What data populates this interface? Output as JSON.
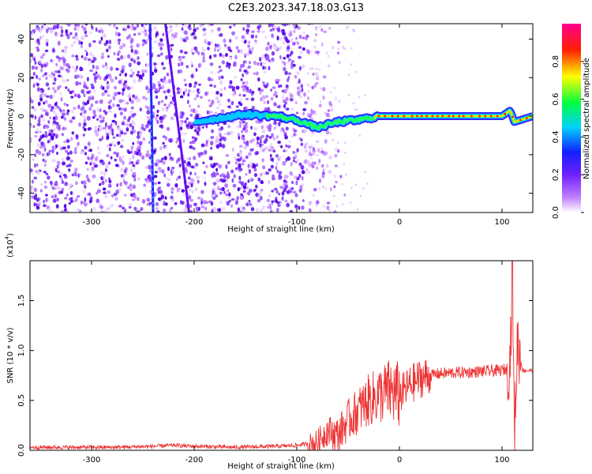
{
  "title": "C2E3.2023.347.18.03.G13",
  "chart_data": [
    {
      "type": "heatmap",
      "xlabel": "Height of straight line (km)",
      "ylabel": "Frequency (Hz)",
      "xlim": [
        -360,
        130
      ],
      "ylim": [
        -50,
        48
      ],
      "xticks": [
        -300,
        -200,
        -100,
        0,
        100
      ],
      "yticks": [
        -40,
        -20,
        0,
        20,
        40
      ],
      "colorbar": {
        "label": "Normalized spectral amplitude",
        "range": [
          0.0,
          1.0
        ],
        "ticks": [
          0.0,
          0.2,
          0.4,
          0.6,
          0.8
        ],
        "colormap": [
          "#ffffff",
          "#a040ff",
          "#2000ff",
          "#00d0ff",
          "#00ff40",
          "#ffff00",
          "#ff2000",
          "#ff0090"
        ]
      },
      "features": {
        "noise_region_x": [
          -360,
          -110
        ],
        "tilted_streak": {
          "x": [
            -243,
            -240
          ],
          "y": [
            48,
            -50
          ]
        },
        "tilted_streak_2": {
          "x": [
            -228,
            -205
          ],
          "y": [
            48,
            -50
          ]
        },
        "signal_line": {
          "x": [
            -200,
            -150,
            -120,
            -100,
            -80,
            -60,
            -40,
            -30,
            -20,
            0,
            50,
            100,
            108,
            112,
            130
          ],
          "y": [
            -3,
            1,
            0,
            -2,
            -6,
            -3,
            -2,
            -1,
            0,
            0,
            0,
            0,
            3,
            -3,
            0
          ]
        }
      },
      "grid": false
    },
    {
      "type": "line",
      "xlabel": "Height of straight line (km)",
      "ylabel": "SNR (10 * v/v)",
      "yscale_label": "(x10",
      "yscale_exp": "4",
      "yscale_close": ")",
      "xlim": [
        -360,
        130
      ],
      "ylim": [
        0,
        1.9
      ],
      "xticks": [
        -300,
        -200,
        -100,
        0,
        100
      ],
      "yticks": [
        0.0,
        0.5,
        1.0,
        1.5
      ],
      "color": "#ee3333",
      "series": [
        {
          "x": [
            -360,
            -320,
            -280,
            -240,
            -220,
            -200,
            -160,
            -120,
            -100,
            -80,
            -70,
            -60,
            -50,
            -40,
            -30,
            -20,
            -10,
            0,
            10,
            20,
            30,
            40,
            60,
            80,
            100,
            105,
            108,
            110,
            112,
            115,
            120,
            130
          ],
          "y": [
            0.03,
            0.03,
            0.03,
            0.04,
            0.05,
            0.04,
            0.03,
            0.04,
            0.05,
            0.08,
            0.2,
            0.15,
            0.3,
            0.4,
            0.5,
            0.55,
            0.6,
            0.55,
            0.65,
            0.72,
            0.75,
            0.77,
            0.78,
            0.79,
            0.8,
            0.82,
            0.9,
            1.9,
            0.1,
            1.1,
            0.8,
            0.8
          ]
        }
      ],
      "grid": false
    }
  ]
}
